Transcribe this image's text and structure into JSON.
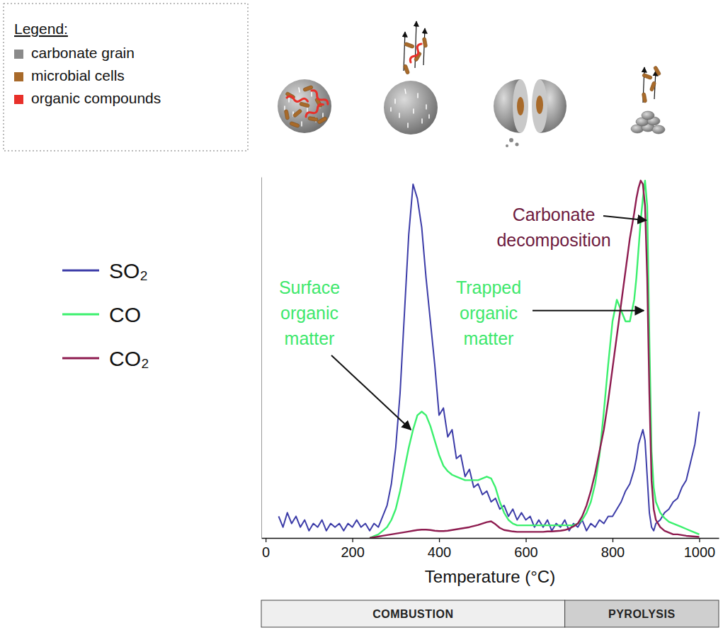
{
  "chart_data": {
    "type": "line",
    "x_label": "Temperature (°C)",
    "x": [
      30,
      40,
      50,
      60,
      70,
      80,
      90,
      100,
      110,
      120,
      130,
      140,
      150,
      160,
      170,
      180,
      190,
      200,
      210,
      220,
      230,
      240,
      250,
      260,
      270,
      280,
      290,
      300,
      310,
      320,
      330,
      340,
      350,
      360,
      370,
      380,
      390,
      400,
      410,
      420,
      430,
      440,
      450,
      460,
      470,
      480,
      490,
      500,
      510,
      520,
      530,
      540,
      550,
      560,
      570,
      580,
      590,
      600,
      610,
      620,
      630,
      640,
      650,
      660,
      670,
      680,
      690,
      700,
      710,
      720,
      730,
      740,
      750,
      760,
      770,
      780,
      790,
      800,
      810,
      820,
      830,
      840,
      850,
      855,
      860,
      865,
      870,
      875,
      880,
      885,
      890,
      895,
      900,
      910,
      920,
      930,
      940,
      950,
      960,
      970,
      980,
      990,
      1000
    ],
    "series": [
      {
        "name": "SO₂",
        "color": "#3c3ca8",
        "values": [
          6,
          3,
          7,
          4,
          6,
          3,
          5,
          2,
          4,
          3,
          5,
          2,
          4,
          3,
          4,
          2,
          4,
          3,
          5,
          3,
          4,
          2,
          4,
          3,
          6,
          9,
          15,
          25,
          40,
          62,
          84,
          98,
          94,
          86,
          72,
          60,
          48,
          34,
          36,
          28,
          30,
          22,
          23,
          17,
          19,
          14,
          15,
          12,
          13,
          10,
          11,
          8,
          9,
          6,
          8,
          5,
          7,
          5,
          6,
          3,
          5,
          3,
          5,
          2,
          4,
          3,
          5,
          2,
          4,
          3,
          5,
          2,
          4,
          3,
          5,
          4,
          6,
          6,
          8,
          10,
          13,
          15,
          19,
          22,
          26,
          28,
          30,
          27,
          17,
          7,
          3,
          2,
          4,
          5,
          7,
          8,
          10,
          11,
          14,
          16,
          21,
          26,
          35
        ]
      },
      {
        "name": "CO",
        "color": "#3cf06e",
        "values": [
          null,
          null,
          null,
          null,
          null,
          null,
          null,
          null,
          null,
          null,
          null,
          null,
          null,
          null,
          null,
          null,
          null,
          null,
          null,
          null,
          null,
          0,
          0.5,
          1,
          2,
          3,
          5,
          8,
          13,
          19,
          25,
          30,
          34,
          35,
          34,
          31,
          27,
          23,
          20,
          18.5,
          17.5,
          17,
          16.5,
          16,
          16,
          16,
          16,
          16.5,
          17,
          16.5,
          14,
          10,
          7,
          5,
          4,
          3.5,
          3.5,
          3.5,
          3.5,
          3.5,
          3.5,
          3.5,
          3.5,
          3.5,
          3.5,
          3.5,
          3.5,
          3.5,
          3.5,
          4,
          5,
          7,
          10,
          15,
          23,
          35,
          48,
          60,
          66,
          63,
          60,
          60,
          66,
          72,
          80,
          88,
          94,
          99,
          92,
          55,
          24,
          14,
          10,
          7,
          5.5,
          4.5,
          4,
          3.5,
          3,
          2.5,
          2,
          1.5,
          1
        ]
      },
      {
        "name": "CO₂",
        "color": "#8e1c50",
        "values": [
          null,
          null,
          null,
          null,
          null,
          null,
          null,
          null,
          null,
          null,
          null,
          null,
          null,
          null,
          null,
          null,
          null,
          null,
          null,
          null,
          null,
          0,
          0.2,
          0.4,
          0.6,
          0.8,
          1,
          1.2,
          1.4,
          1.6,
          1.8,
          2,
          2.2,
          2.3,
          2.3,
          2.2,
          2,
          1.9,
          1.9,
          2,
          2.2,
          2.4,
          2.6,
          2.8,
          3,
          3.3,
          3.6,
          4,
          4.4,
          4.6,
          3.8,
          2.8,
          2.2,
          2,
          1.8,
          1.7,
          1.7,
          1.7,
          1.7,
          1.7,
          1.7,
          1.7,
          1.8,
          1.8,
          1.9,
          2,
          2.2,
          2.6,
          3.2,
          4,
          6,
          9,
          13,
          18,
          24,
          30,
          38,
          47,
          56,
          65,
          74,
          83,
          90,
          94,
          97,
          99,
          98,
          92,
          72,
          40,
          16,
          8,
          5,
          3,
          2,
          1.5,
          1,
          1,
          0.8,
          0.6,
          0.5,
          0.4,
          0.3
        ]
      }
    ],
    "xlim": [
      -10,
      1045
    ],
    "xticks": [
      0,
      200,
      400,
      600,
      800,
      1000
    ],
    "ylim": [
      0,
      100
    ],
    "yticks": [],
    "tick_labels": "x",
    "legend": "left",
    "annotations": [
      {
        "text": "Surface organic matter",
        "x": 335,
        "y": 30,
        "color": "#3ee86c"
      },
      {
        "text": "Trapped organic matter",
        "x": 872,
        "y": 63,
        "color": "#3ee86c"
      },
      {
        "text": "Carbonate decomposition",
        "x": 878,
        "y": 88,
        "color": "#6e1a3e"
      }
    ],
    "phases": [
      {
        "label": "COMBUSTION",
        "from": -10,
        "to": 690
      },
      {
        "label": "PYROLYSIS",
        "from": 690,
        "to": 1045
      }
    ]
  },
  "illustration": {
    "legend_title": "Legend:",
    "items": [
      {
        "label": "carbonate grain",
        "color": "#8a8a8a"
      },
      {
        "label": "microbial cells",
        "color": "#a86a2a"
      },
      {
        "label": "organic compounds",
        "color": "#e8302a"
      }
    ]
  }
}
